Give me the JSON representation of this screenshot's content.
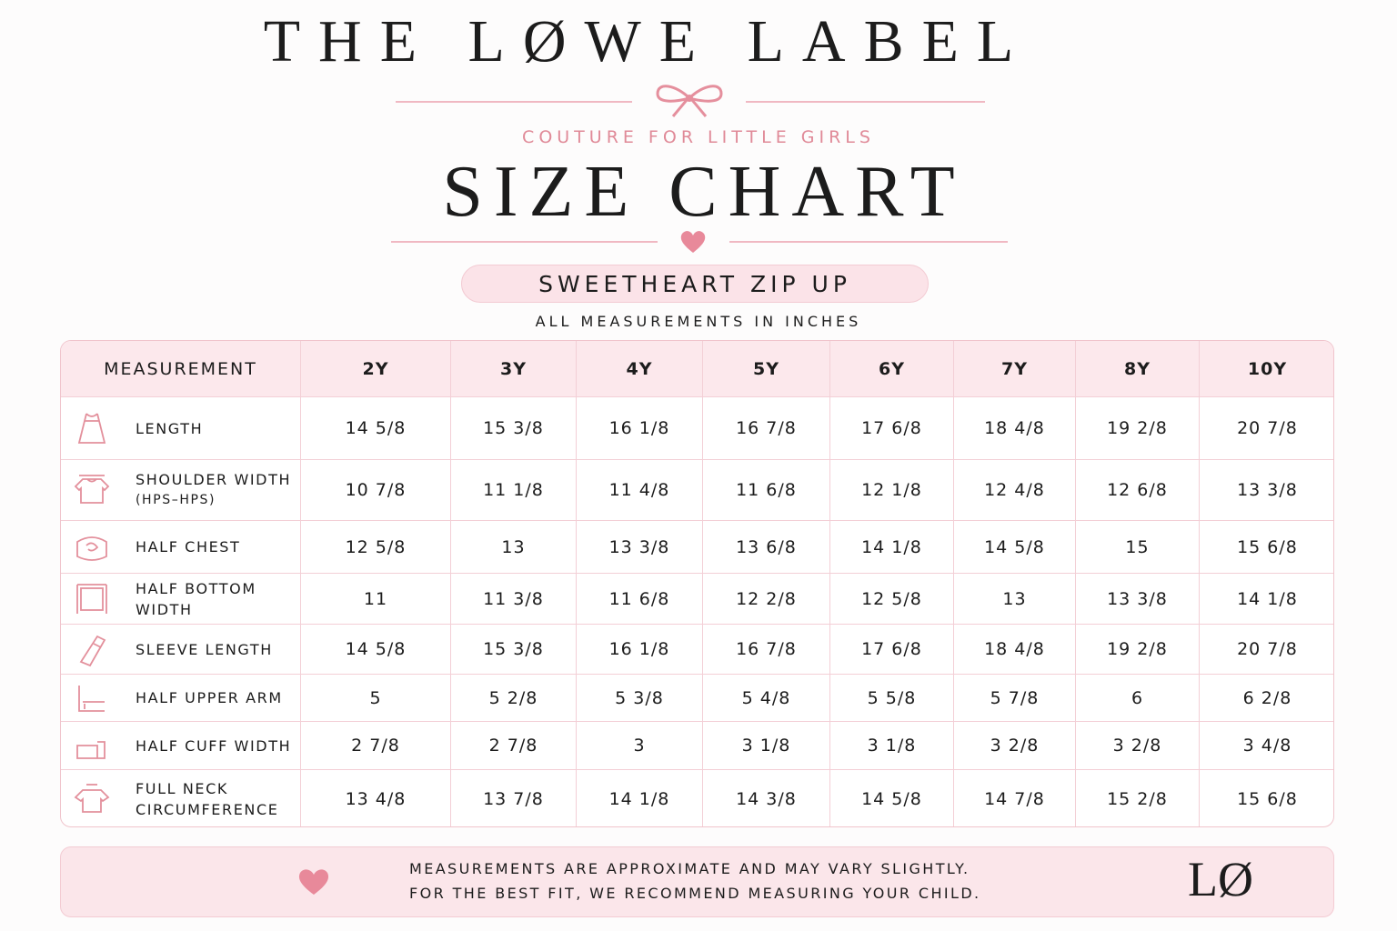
{
  "header": {
    "brand": "THE LØWE LABEL",
    "tagline": "COUTURE FOR LITTLE GIRLS",
    "title": "SIZE CHART",
    "product": "SWEETHEART ZIP UP",
    "units": "ALL MEASUREMENTS IN INCHES"
  },
  "table": {
    "columns": [
      "MEASUREMENT",
      "2Y",
      "3Y",
      "4Y",
      "5Y",
      "6Y",
      "7Y",
      "8Y",
      "10Y"
    ],
    "rows": [
      {
        "label": [
          "LENGTH"
        ],
        "values": [
          "14 5/8",
          "15 3/8",
          "16 1/8",
          "16 7/8",
          "17 6/8",
          "18 4/8",
          "19 2/8",
          "20 7/8"
        ]
      },
      {
        "label": [
          "SHOULDER WIDTH",
          "(HPS–HPS)"
        ],
        "values": [
          "10 7/8",
          "11 1/8",
          "11 4/8",
          "11 6/8",
          "12 1/8",
          "12 4/8",
          "12 6/8",
          "13 3/8"
        ]
      },
      {
        "label": [
          "HALF CHEST"
        ],
        "values": [
          "12 5/8",
          "13",
          "13 3/8",
          "13 6/8",
          "14 1/8",
          "14 5/8",
          "15",
          "15 6/8"
        ]
      },
      {
        "label": [
          "HALF BOTTOM WIDTH"
        ],
        "values": [
          "11",
          "11 3/8",
          "11 6/8",
          "12 2/8",
          "12 5/8",
          "13",
          "13 3/8",
          "14 1/8"
        ]
      },
      {
        "label": [
          "SLEEVE LENGTH"
        ],
        "values": [
          "14 5/8",
          "15 3/8",
          "16 1/8",
          "16 7/8",
          "17 6/8",
          "18 4/8",
          "19 2/8",
          "20 7/8"
        ]
      },
      {
        "label": [
          "HALF UPPER ARM"
        ],
        "values": [
          "5",
          "5 2/8",
          "5 3/8",
          "5 4/8",
          "5 5/8",
          "5 7/8",
          "6",
          "6 2/8"
        ]
      },
      {
        "label": [
          "HALF CUFF WIDTH"
        ],
        "values": [
          "2 7/8",
          "2 7/8",
          "3",
          "3 1/8",
          "3 1/8",
          "3 2/8",
          "3 2/8",
          "3 4/8"
        ]
      },
      {
        "label": [
          "FULL NECK",
          "CIRCUMFERENCE"
        ],
        "values": [
          "13 4/8",
          "13 7/8",
          "14 1/8",
          "14 3/8",
          "14 5/8",
          "14 7/8",
          "15 2/8",
          "15 6/8"
        ]
      }
    ]
  },
  "footer": {
    "note": [
      "MEASUREMENTS ARE APPROXIMATE AND MAY VARY SLIGHTLY.",
      "FOR THE BEST FIT, WE RECOMMEND MEASURING YOUR CHILD."
    ],
    "logo": "LØ"
  }
}
